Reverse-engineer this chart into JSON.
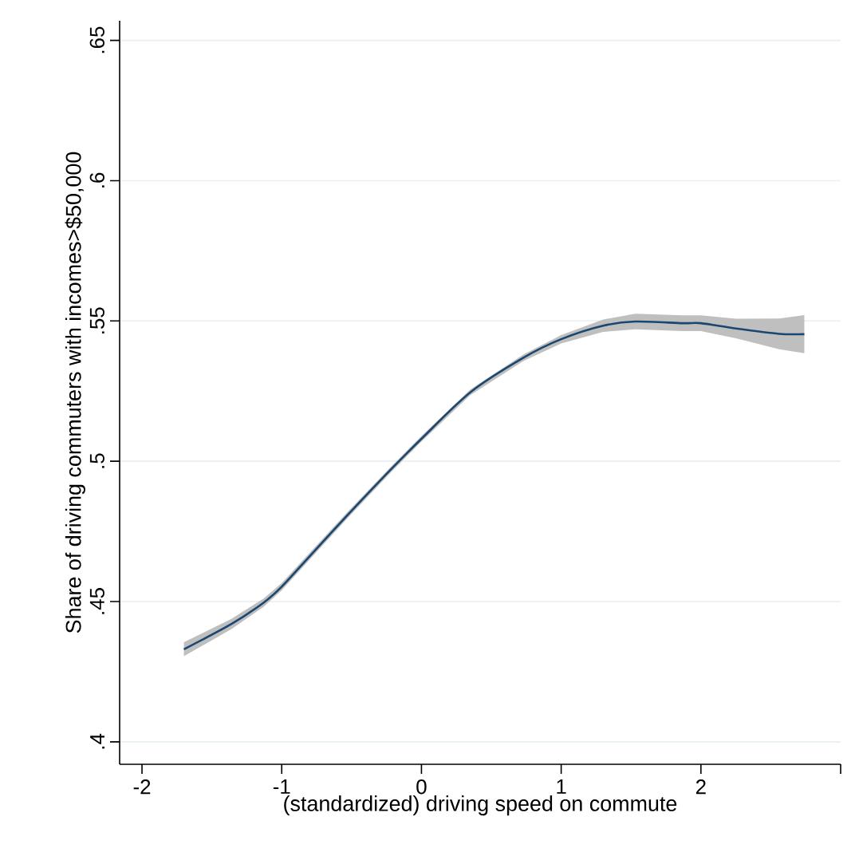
{
  "chart_data": {
    "type": "line",
    "xlabel": "(standardized) driving speed on commute",
    "ylabel": "Share of driving commuters with incomes>$50,000",
    "xlim": [
      -2.16,
      3.0
    ],
    "ylim": [
      0.392,
      0.657
    ],
    "xticks": [
      -2,
      -1,
      0,
      1,
      2,
      {
        "value": 3,
        "label": null
      }
    ],
    "yticks": [
      {
        "value": 0.4,
        "label": ".4"
      },
      {
        "value": 0.45,
        "label": ".45"
      },
      {
        "value": 0.5,
        "label": ".5"
      },
      {
        "value": 0.55,
        "label": ".55"
      },
      {
        "value": 0.6,
        "label": ".6"
      },
      {
        "value": 0.65,
        "label": ".65"
      }
    ],
    "grid": "y",
    "series": [
      {
        "color": "#1a476f",
        "x": [
          -1.7,
          -1.36,
          -1.13,
          -1.0,
          -0.79,
          -0.525,
          -0.22,
          0,
          0.35,
          0.73,
          1.0,
          1.3,
          1.53,
          1.87,
          2.0,
          2.25,
          2.56,
          2.74
        ],
        "values": [
          0.433,
          0.442,
          0.4496,
          0.4553,
          0.4667,
          0.481,
          0.497,
          0.508,
          0.5246,
          0.5369,
          0.5435,
          0.5483,
          0.5498,
          0.5492,
          0.5492,
          0.5473,
          0.5454,
          0.5453
        ],
        "lower": [
          0.4305,
          0.4402,
          0.4481,
          0.454,
          0.4655,
          0.4799,
          0.496,
          0.507,
          0.5236,
          0.5357,
          0.542,
          0.5461,
          0.547,
          0.5464,
          0.5464,
          0.5438,
          0.5399,
          0.5385
        ],
        "upper": [
          0.4355,
          0.4438,
          0.4511,
          0.4566,
          0.4679,
          0.4821,
          0.498,
          0.509,
          0.5256,
          0.5381,
          0.545,
          0.5505,
          0.5526,
          0.552,
          0.552,
          0.5508,
          0.5509,
          0.5521
        ]
      }
    ]
  }
}
